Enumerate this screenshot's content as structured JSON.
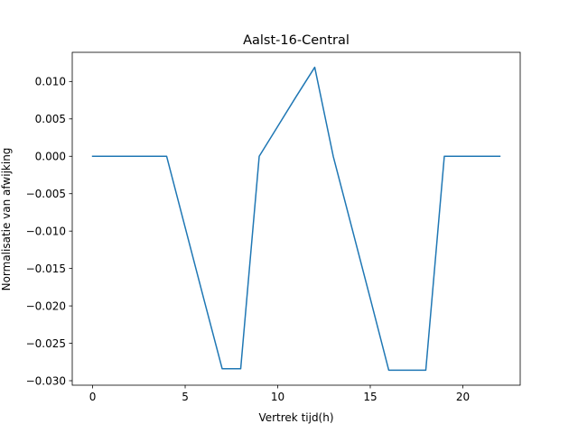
{
  "chart_data": {
    "type": "line",
    "title": "Aalst-16-Central",
    "xlabel": "Vertrek tijd(h)",
    "ylabel": "Normalisatie van afwijking",
    "xlim": [
      -1.1,
      23.1
    ],
    "ylim": [
      -0.0306,
      0.0139
    ],
    "xticks": [
      0,
      5,
      10,
      15,
      20
    ],
    "xtick_labels": [
      "0",
      "5",
      "10",
      "15",
      "20"
    ],
    "yticks": [
      -0.03,
      -0.025,
      -0.02,
      -0.015,
      -0.01,
      -0.005,
      0.0,
      0.005,
      0.01
    ],
    "ytick_labels": [
      "−0.030",
      "−0.025",
      "−0.020",
      "−0.015",
      "−0.010",
      "−0.005",
      "0.000",
      "0.005",
      "0.010"
    ],
    "grid": false,
    "series": [
      {
        "color": "#1f77b4",
        "x": [
          0,
          1,
          2,
          3,
          4,
          5,
          6,
          7,
          8,
          9,
          10,
          11,
          12,
          13,
          14,
          15,
          16,
          17,
          18,
          19,
          20,
          21,
          22
        ],
        "y": [
          0,
          0,
          0,
          0,
          0,
          -0.0095,
          -0.019,
          -0.0284,
          -0.0284,
          0,
          0.004,
          0.008,
          0.0119,
          0,
          -0.0095,
          -0.019,
          -0.0286,
          -0.0286,
          -0.0286,
          0,
          0,
          0,
          0
        ]
      }
    ]
  }
}
